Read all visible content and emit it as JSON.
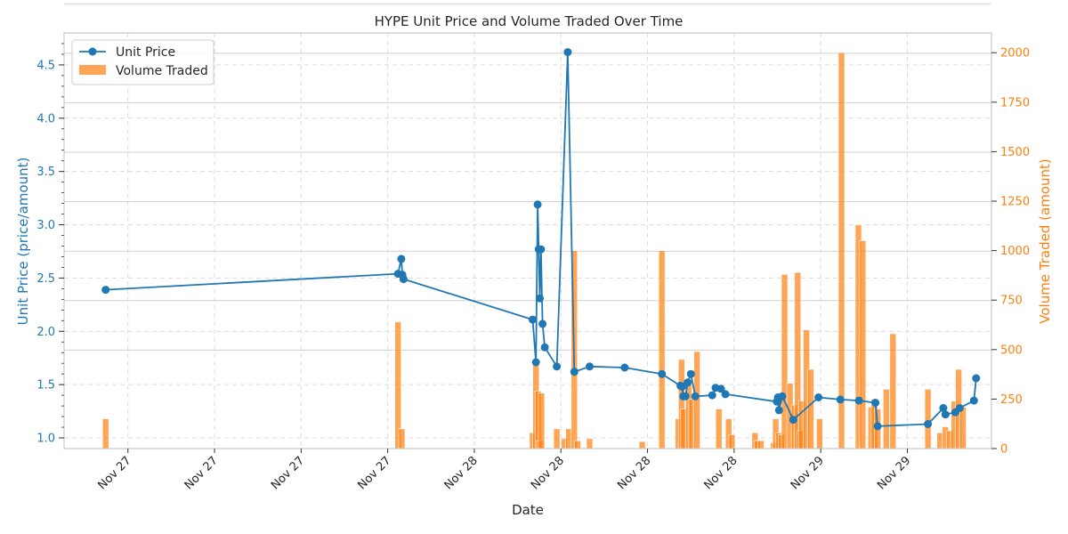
{
  "chart_data": {
    "type": "line",
    "title": "HYPE Unit Price and Volume Traded Over Time",
    "xlabel": "Date",
    "ylabel_left": "Unit Price (price/amount)",
    "ylabel_right": "Volume Traded (amount)",
    "x_tick_labels": [
      "Nov 27",
      "Nov 27",
      "Nov 27",
      "Nov 27",
      "Nov 28",
      "Nov 28",
      "Nov 28",
      "Nov 28",
      "Nov 29",
      "Nov 29"
    ],
    "y_left_ticks": [
      "1.0",
      "1.5",
      "2.0",
      "2.5",
      "3.0",
      "3.5",
      "4.0",
      "4.5"
    ],
    "y_right_ticks": [
      "0",
      "250",
      "500",
      "750",
      "1000",
      "1250",
      "1500",
      "1750",
      "2000"
    ],
    "ylim_left": [
      0.9,
      4.8
    ],
    "ylim_right": [
      0,
      2100
    ],
    "xlim_hours": [
      4.5,
      89.2
    ],
    "grid": true,
    "legend": "top-left",
    "colors": {
      "price": "#1f77b4",
      "volume": "#ff7f0e"
    },
    "series": [
      {
        "name": "Unit Price",
        "x_hours": [
          8.3,
          35.0,
          35.3,
          35.4,
          35.5,
          47.3,
          47.6,
          47.75,
          47.85,
          47.95,
          48.05,
          48.2,
          48.4,
          49.5,
          50.5,
          51.1,
          52.5,
          55.7,
          59.1,
          60.8,
          60.95,
          61.05,
          61.25,
          61.45,
          61.75,
          62.15,
          63.7,
          64.0,
          64.5,
          64.9,
          69.6,
          69.7,
          69.8,
          70.1,
          71.1,
          73.4,
          75.4,
          77.1,
          78.6,
          78.8,
          83.4,
          84.8,
          85.0,
          85.9,
          86.3,
          87.6,
          87.8
        ],
        "y": [
          2.39,
          2.54,
          2.68,
          2.53,
          2.49,
          2.11,
          1.71,
          3.19,
          2.77,
          2.31,
          2.77,
          2.07,
          1.85,
          1.67,
          4.62,
          1.62,
          1.67,
          1.66,
          1.6,
          1.49,
          1.48,
          1.39,
          1.39,
          1.52,
          1.6,
          1.39,
          1.4,
          1.47,
          1.46,
          1.41,
          1.34,
          1.38,
          1.26,
          1.39,
          1.17,
          1.38,
          1.36,
          1.35,
          1.33,
          1.11,
          1.13,
          1.28,
          1.22,
          1.24,
          1.28,
          1.35,
          1.56
        ]
      },
      {
        "name": "Volume Traded",
        "type": "bar",
        "x_hours": [
          8.3,
          35.0,
          35.35,
          47.3,
          47.6,
          47.8,
          47.95,
          48.1,
          49.5,
          50.2,
          50.6,
          51.1,
          51.4,
          52.5,
          57.3,
          59.1,
          60.6,
          60.9,
          61.1,
          61.55,
          61.85,
          62.3,
          64.3,
          65.2,
          65.5,
          67.6,
          67.8,
          68.15,
          69.3,
          69.5,
          69.8,
          70.0,
          70.3,
          70.8,
          71.2,
          71.5,
          71.7,
          71.9,
          72.3,
          72.7,
          73.5,
          75.5,
          77.05,
          77.45,
          78.2,
          78.5,
          78.8,
          79.6,
          80.2,
          83.4,
          84.5,
          85.0,
          85.4,
          85.8,
          86.2,
          86.6
        ],
        "values": [
          150,
          640,
          100,
          80,
          440,
          290,
          40,
          280,
          100,
          50,
          100,
          1000,
          40,
          50,
          35,
          1000,
          150,
          450,
          200,
          350,
          250,
          490,
          200,
          150,
          70,
          80,
          40,
          40,
          30,
          150,
          80,
          70,
          880,
          330,
          220,
          890,
          90,
          240,
          600,
          400,
          150,
          2000,
          1130,
          1050,
          210,
          250,
          200,
          300,
          580,
          300,
          80,
          110,
          90,
          240,
          400,
          210
        ]
      }
    ]
  }
}
